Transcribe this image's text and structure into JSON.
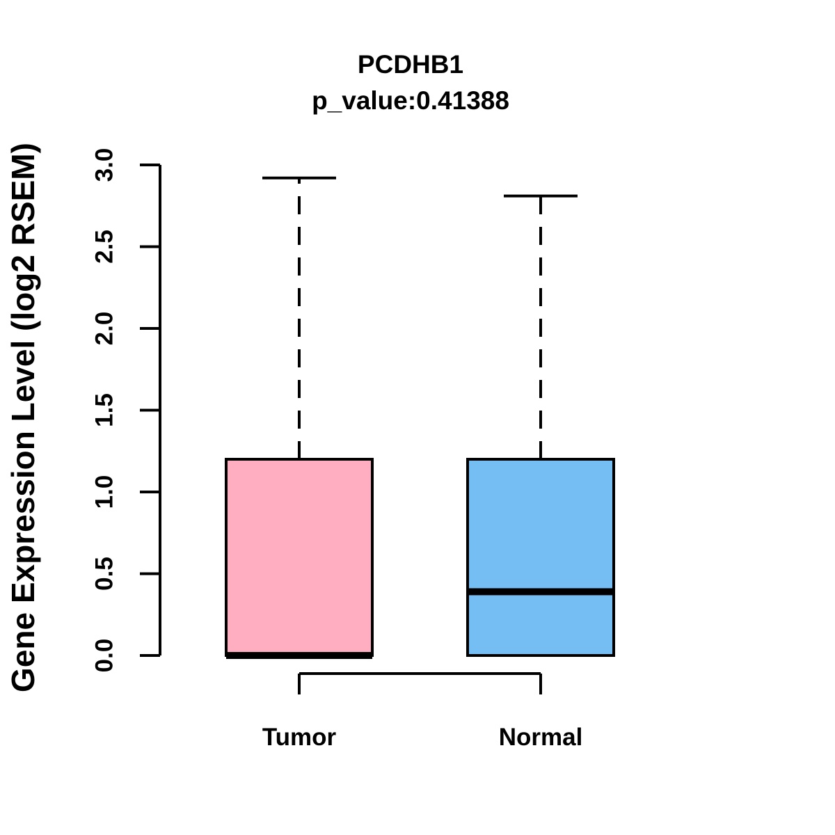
{
  "chart_data": {
    "type": "boxplot",
    "title": "PCDHB1",
    "subtitle": "p_value:0.41388",
    "p_value": "0.41388",
    "gene": "PCDHB1",
    "xlabel": "",
    "ylabel": "Gene Expression Level (log2 RSEM)",
    "ylim": [
      0,
      3
    ],
    "ytick_labels": [
      "0.0",
      "0.5",
      "1.0",
      "1.5",
      "2.0",
      "2.5",
      "3.0"
    ],
    "grid": false,
    "legend": "none",
    "categories": [
      "Tumor",
      "Normal"
    ],
    "series": [
      {
        "name": "Tumor",
        "color": "#FFAEC1",
        "whisker_low": 0.0,
        "q1": 0.0,
        "median": 0.0,
        "q3": 1.2,
        "whisker_high": 2.92
      },
      {
        "name": "Normal",
        "color": "#74BEF4",
        "whisker_low": 0.0,
        "q1": 0.0,
        "median": 0.39,
        "q3": 1.2,
        "whisker_high": 2.81
      }
    ],
    "annotations": {
      "comparison_bracket": {
        "connects": [
          "Tumor",
          "Normal"
        ],
        "label": ""
      }
    },
    "colors": {
      "box_border": "#000000",
      "axis": "#000000",
      "text": "#000000",
      "background": "#ffffff"
    }
  }
}
